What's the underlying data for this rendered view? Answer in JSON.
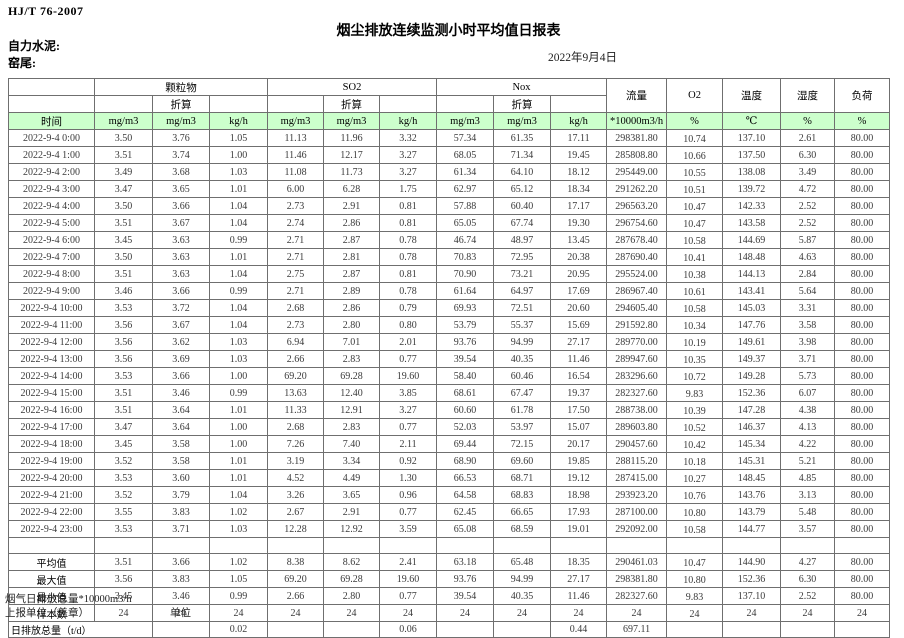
{
  "meta": {
    "standard": "HJ/T 76-2007",
    "title": "烟尘排放连续监测小时平均值日报表",
    "company": "自力水泥:",
    "location": "窑尾:",
    "date": "2022年9月4日"
  },
  "table": {
    "time_label": "时间",
    "group_labels": [
      "颗粒物",
      "SO2",
      "Nox"
    ],
    "subheader_label": "折算",
    "tail_headers": [
      "流量",
      "O2",
      "温度",
      "湿度",
      "负荷"
    ],
    "units": [
      "mg/m3",
      "mg/m3",
      "kg/h",
      "mg/m3",
      "mg/m3",
      "kg/h",
      "mg/m3",
      "mg/m3",
      "kg/h",
      "*10000m3/h",
      "%",
      "℃",
      "%",
      "%"
    ],
    "rows": [
      {
        "time": "2022-9-4 0:00",
        "values": [
          "3.50",
          "3.76",
          "1.05",
          "11.13",
          "11.96",
          "3.32",
          "57.34",
          "61.35",
          "17.11",
          "298381.80",
          "10.74",
          "137.10",
          "2.61",
          "80.00"
        ]
      },
      {
        "time": "2022-9-4 1:00",
        "values": [
          "3.51",
          "3.74",
          "1.00",
          "11.46",
          "12.17",
          "3.27",
          "68.05",
          "71.34",
          "19.45",
          "285808.80",
          "10.66",
          "137.50",
          "6.30",
          "80.00"
        ]
      },
      {
        "time": "2022-9-4 2:00",
        "values": [
          "3.49",
          "3.68",
          "1.03",
          "11.08",
          "11.73",
          "3.27",
          "61.34",
          "64.10",
          "18.12",
          "295449.00",
          "10.55",
          "138.08",
          "3.49",
          "80.00"
        ]
      },
      {
        "time": "2022-9-4 3:00",
        "values": [
          "3.47",
          "3.65",
          "1.01",
          "6.00",
          "6.28",
          "1.75",
          "62.97",
          "65.12",
          "18.34",
          "291262.20",
          "10.51",
          "139.72",
          "4.72",
          "80.00"
        ]
      },
      {
        "time": "2022-9-4 4:00",
        "values": [
          "3.50",
          "3.66",
          "1.04",
          "2.73",
          "2.91",
          "0.81",
          "57.88",
          "60.40",
          "17.17",
          "296563.20",
          "10.47",
          "142.33",
          "2.52",
          "80.00"
        ]
      },
      {
        "time": "2022-9-4 5:00",
        "values": [
          "3.51",
          "3.67",
          "1.04",
          "2.74",
          "2.86",
          "0.81",
          "65.05",
          "67.74",
          "19.30",
          "296754.60",
          "10.47",
          "143.58",
          "2.52",
          "80.00"
        ]
      },
      {
        "time": "2022-9-4 6:00",
        "values": [
          "3.45",
          "3.63",
          "0.99",
          "2.71",
          "2.87",
          "0.78",
          "46.74",
          "48.97",
          "13.45",
          "287678.40",
          "10.58",
          "144.69",
          "5.87",
          "80.00"
        ]
      },
      {
        "time": "2022-9-4 7:00",
        "values": [
          "3.50",
          "3.63",
          "1.01",
          "2.71",
          "2.81",
          "0.78",
          "70.83",
          "72.95",
          "20.38",
          "287690.40",
          "10.41",
          "148.48",
          "4.63",
          "80.00"
        ]
      },
      {
        "time": "2022-9-4 8:00",
        "values": [
          "3.51",
          "3.63",
          "1.04",
          "2.75",
          "2.87",
          "0.81",
          "70.90",
          "73.21",
          "20.95",
          "295524.00",
          "10.38",
          "144.13",
          "2.84",
          "80.00"
        ]
      },
      {
        "time": "2022-9-4 9:00",
        "values": [
          "3.46",
          "3.66",
          "0.99",
          "2.71",
          "2.89",
          "0.78",
          "61.64",
          "64.97",
          "17.69",
          "286967.40",
          "10.61",
          "143.41",
          "5.64",
          "80.00"
        ]
      },
      {
        "time": "2022-9-4 10:00",
        "values": [
          "3.53",
          "3.72",
          "1.04",
          "2.68",
          "2.86",
          "0.79",
          "69.93",
          "72.51",
          "20.60",
          "294605.40",
          "10.58",
          "145.03",
          "3.31",
          "80.00"
        ]
      },
      {
        "time": "2022-9-4 11:00",
        "values": [
          "3.56",
          "3.67",
          "1.04",
          "2.73",
          "2.80",
          "0.80",
          "53.79",
          "55.37",
          "15.69",
          "291592.80",
          "10.34",
          "147.76",
          "3.58",
          "80.00"
        ]
      },
      {
        "time": "2022-9-4 12:00",
        "values": [
          "3.56",
          "3.62",
          "1.03",
          "6.94",
          "7.01",
          "2.01",
          "93.76",
          "94.99",
          "27.17",
          "289770.00",
          "10.19",
          "149.61",
          "3.98",
          "80.00"
        ]
      },
      {
        "time": "2022-9-4 13:00",
        "values": [
          "3.56",
          "3.69",
          "1.03",
          "2.66",
          "2.83",
          "0.77",
          "39.54",
          "40.35",
          "11.46",
          "289947.60",
          "10.35",
          "149.37",
          "3.71",
          "80.00"
        ]
      },
      {
        "time": "2022-9-4 14:00",
        "values": [
          "3.53",
          "3.66",
          "1.00",
          "69.20",
          "69.28",
          "19.60",
          "58.40",
          "60.46",
          "16.54",
          "283296.60",
          "10.72",
          "149.28",
          "5.73",
          "80.00"
        ]
      },
      {
        "time": "2022-9-4 15:00",
        "values": [
          "3.51",
          "3.46",
          "0.99",
          "13.63",
          "12.40",
          "3.85",
          "68.61",
          "67.47",
          "19.37",
          "282327.60",
          "9.83",
          "152.36",
          "6.07",
          "80.00"
        ]
      },
      {
        "time": "2022-9-4 16:00",
        "values": [
          "3.51",
          "3.64",
          "1.01",
          "11.33",
          "12.91",
          "3.27",
          "60.60",
          "61.78",
          "17.50",
          "288738.00",
          "10.39",
          "147.28",
          "4.38",
          "80.00"
        ]
      },
      {
        "time": "2022-9-4 17:00",
        "values": [
          "3.47",
          "3.64",
          "1.00",
          "2.68",
          "2.83",
          "0.77",
          "52.03",
          "53.97",
          "15.07",
          "289603.80",
          "10.52",
          "146.37",
          "4.13",
          "80.00"
        ]
      },
      {
        "time": "2022-9-4 18:00",
        "values": [
          "3.45",
          "3.58",
          "1.00",
          "7.26",
          "7.40",
          "2.11",
          "69.44",
          "72.15",
          "20.17",
          "290457.60",
          "10.42",
          "145.34",
          "4.22",
          "80.00"
        ]
      },
      {
        "time": "2022-9-4 19:00",
        "values": [
          "3.52",
          "3.58",
          "1.01",
          "3.19",
          "3.34",
          "0.92",
          "68.90",
          "69.60",
          "19.85",
          "288115.20",
          "10.18",
          "145.31",
          "5.21",
          "80.00"
        ]
      },
      {
        "time": "2022-9-4 20:00",
        "values": [
          "3.53",
          "3.60",
          "1.01",
          "4.52",
          "4.49",
          "1.30",
          "66.53",
          "68.71",
          "19.12",
          "287415.00",
          "10.27",
          "148.45",
          "4.85",
          "80.00"
        ]
      },
      {
        "time": "2022-9-4 21:00",
        "values": [
          "3.52",
          "3.79",
          "1.04",
          "3.26",
          "3.65",
          "0.96",
          "64.58",
          "68.83",
          "18.98",
          "293923.20",
          "10.76",
          "143.76",
          "3.13",
          "80.00"
        ]
      },
      {
        "time": "2022-9-4 22:00",
        "values": [
          "3.55",
          "3.83",
          "1.02",
          "2.67",
          "2.91",
          "0.77",
          "62.45",
          "66.65",
          "17.93",
          "287100.00",
          "10.80",
          "143.79",
          "5.48",
          "80.00"
        ]
      },
      {
        "time": "2022-9-4 23:00",
        "values": [
          "3.53",
          "3.71",
          "1.03",
          "12.28",
          "12.92",
          "3.59",
          "65.08",
          "68.59",
          "19.01",
          "292092.00",
          "10.58",
          "144.77",
          "3.57",
          "80.00"
        ]
      }
    ],
    "summary_rows": [
      {
        "label": "平均值",
        "values": [
          "3.51",
          "3.66",
          "1.02",
          "8.38",
          "8.62",
          "2.41",
          "63.18",
          "65.48",
          "18.35",
          "290461.03",
          "10.47",
          "144.90",
          "4.27",
          "80.00"
        ]
      },
      {
        "label": "最大值",
        "values": [
          "3.56",
          "3.83",
          "1.05",
          "69.20",
          "69.28",
          "19.60",
          "93.76",
          "94.99",
          "27.17",
          "298381.80",
          "10.80",
          "152.36",
          "6.30",
          "80.00"
        ]
      },
      {
        "label": "最小值",
        "values": [
          "3.45",
          "3.46",
          "0.99",
          "2.66",
          "2.80",
          "0.77",
          "39.54",
          "40.35",
          "11.46",
          "282327.60",
          "9.83",
          "137.10",
          "2.52",
          "80.00"
        ]
      },
      {
        "label": "样本数",
        "values": [
          "24",
          "24",
          "24",
          "24",
          "24",
          "24",
          "24",
          "24",
          "24",
          "24",
          "24",
          "24",
          "24",
          "24"
        ]
      }
    ],
    "daily_total": {
      "label": "日排放总量（t/d）",
      "values": [
        "",
        "0.02",
        "",
        "",
        "0.06",
        "",
        "",
        "0.44",
        "697.11",
        "",
        "",
        "",
        ""
      ]
    }
  },
  "footer": {
    "note": "烟气日排放总量*10000m3/h",
    "report_unit": "上报单位（盖章）",
    "unit_label": "单位"
  },
  "colors": {
    "header_green": "#ccffcc",
    "border": "#6f6f6f"
  }
}
